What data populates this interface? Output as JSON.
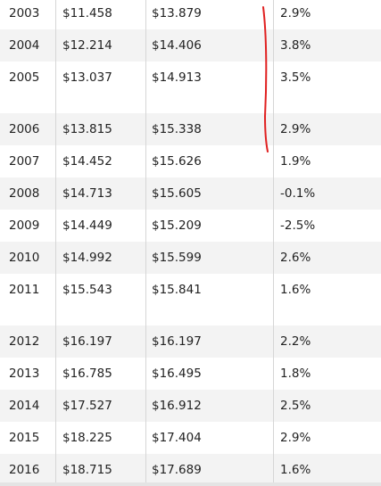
{
  "table": {
    "rows": [
      [
        "2003",
        "$11.458",
        "$13.879",
        "2.9%"
      ],
      [
        "2004",
        "$12.214",
        "$14.406",
        "3.8%"
      ],
      [
        "2005",
        "$13.037",
        "$14.913",
        "3.5%"
      ],
      [
        "2006",
        "$13.815",
        "$15.338",
        "2.9%"
      ],
      [
        "2007",
        "$14.452",
        "$15.626",
        "1.9%"
      ],
      [
        "2008",
        "$14.713",
        "$15.605",
        "-0.1%"
      ],
      [
        "2009",
        "$14.449",
        "$15.209",
        "-2.5%"
      ],
      [
        "2010",
        "$14.992",
        "$15.599",
        "2.6%"
      ],
      [
        "2011",
        "$15.543",
        "$15.841",
        "1.6%"
      ],
      [
        "2012",
        "$16.197",
        "$16.197",
        "2.2%"
      ],
      [
        "2013",
        "$16.785",
        "$16.495",
        "1.8%"
      ],
      [
        "2014",
        "$17.527",
        "$16.912",
        "2.5%"
      ],
      [
        "2015",
        "$18.225",
        "$17.404",
        "2.9%"
      ],
      [
        "2016",
        "$18.715",
        "$17.689",
        "1.6%"
      ]
    ]
  }
}
